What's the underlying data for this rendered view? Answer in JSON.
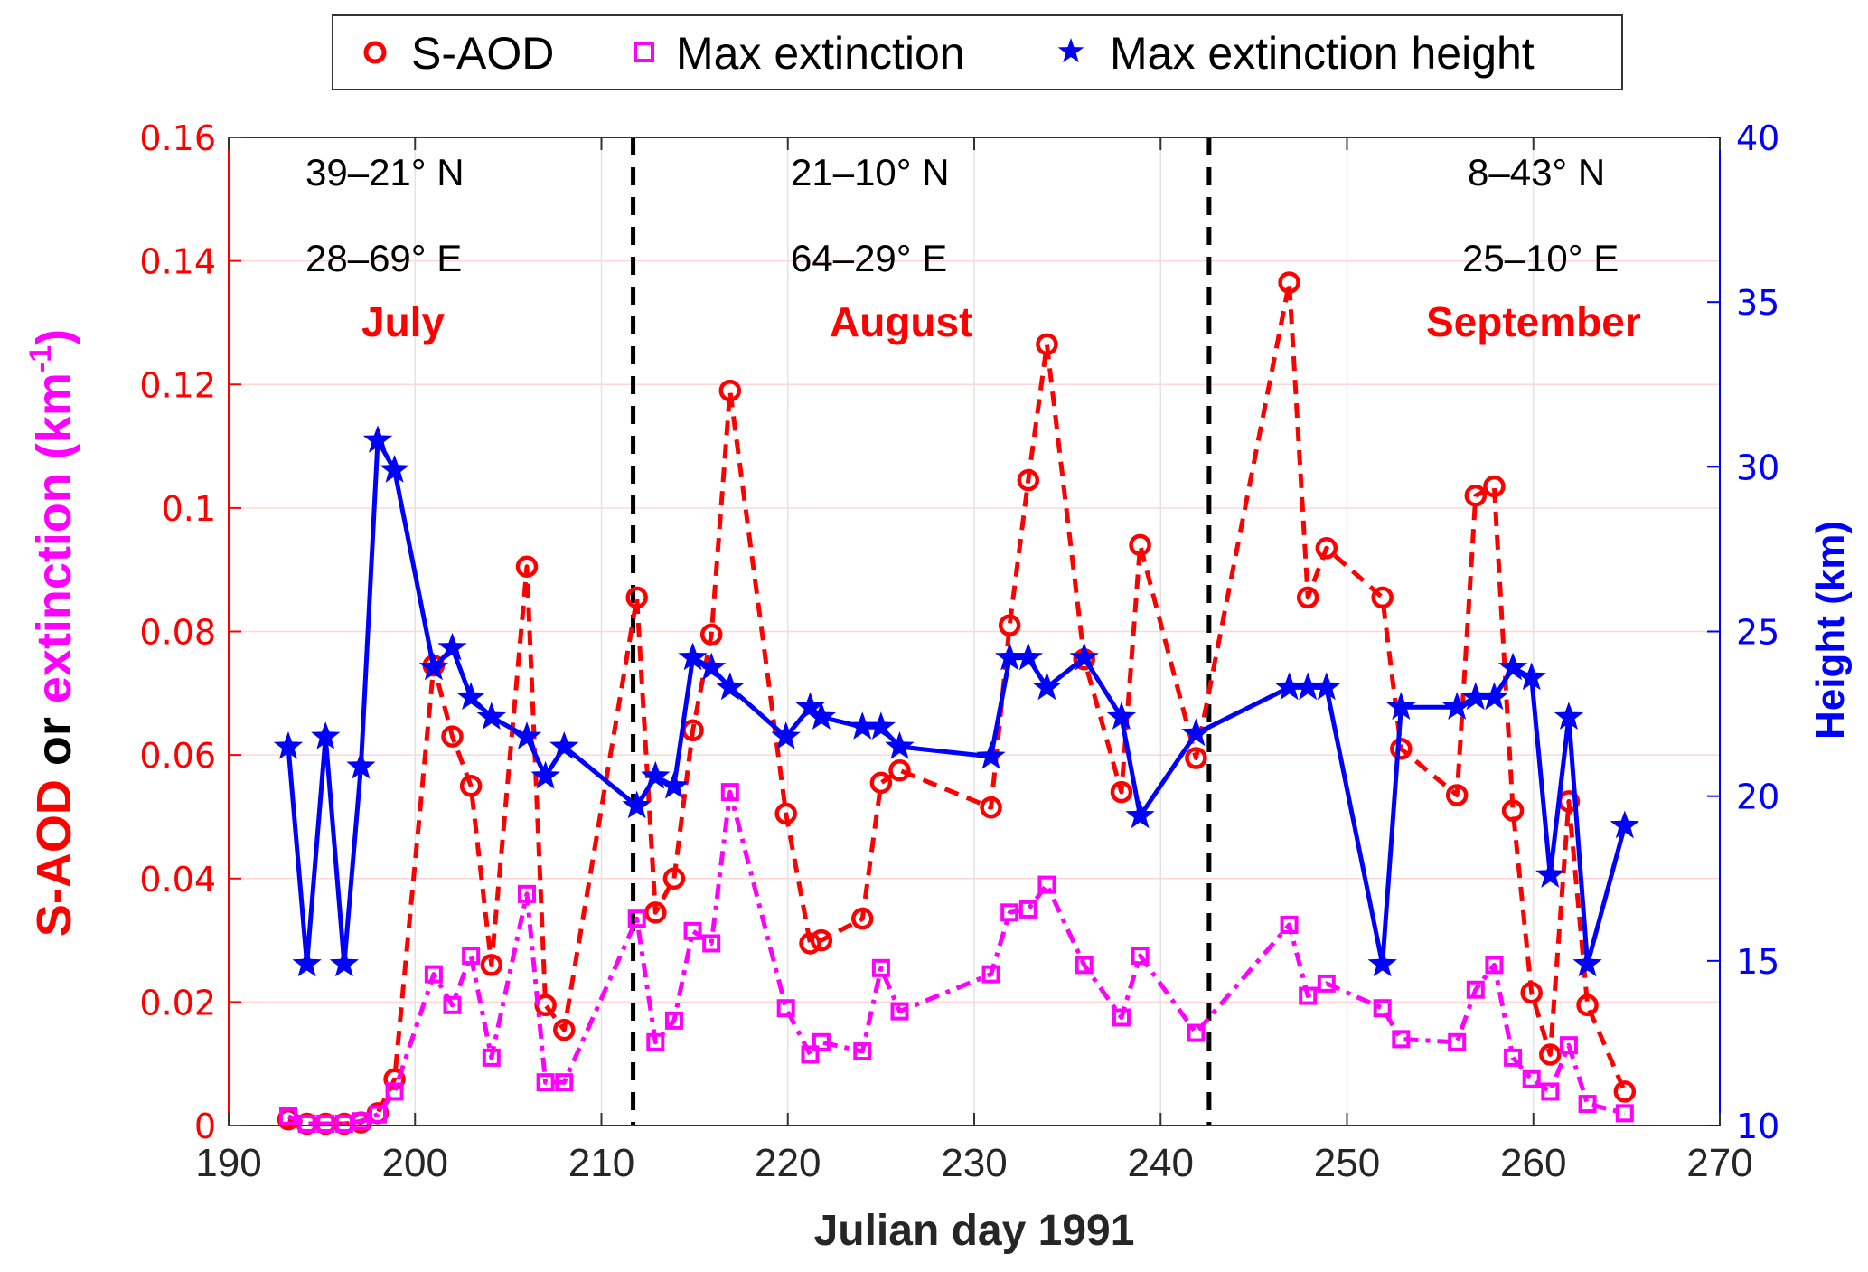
{
  "chart_data": {
    "type": "line",
    "title": "",
    "xlabel": "Julian day 1991",
    "ylabel_left_parts": [
      {
        "text": "S-AOD",
        "color": "#ff0000"
      },
      {
        "text": " or ",
        "color": "#000000"
      },
      {
        "text": "extinction (km",
        "color": "#ff00ff"
      },
      {
        "text": "-1",
        "color": "#ff00ff",
        "superscript": true
      },
      {
        "text": ")",
        "color": "#ff00ff"
      }
    ],
    "ylabel_right": "Height (km)",
    "xlim": [
      190,
      270
    ],
    "ylim_left": [
      0,
      0.16
    ],
    "ylim_right": [
      10,
      40
    ],
    "x_ticks": [
      "190",
      "200",
      "210",
      "220",
      "230",
      "240",
      "250",
      "260",
      "270"
    ],
    "y_left_ticks": [
      "0",
      "0.02",
      "0.04",
      "0.06",
      "0.08",
      "0.1",
      "0.12",
      "0.14",
      "0.16"
    ],
    "y_right_ticks": [
      "10",
      "15",
      "20",
      "25",
      "30",
      "35",
      "40"
    ],
    "grid": true,
    "legend_position": "top-center-outside",
    "legend": [
      {
        "label": "S-AOD",
        "marker": "circle",
        "color": "#ff0000"
      },
      {
        "label": "Max extinction",
        "marker": "square",
        "color": "#ff00ff"
      },
      {
        "label": "Max extinction height",
        "marker": "star",
        "color": "#0000ff"
      }
    ],
    "separators": [
      211.7,
      242.6
    ],
    "annotations": [
      {
        "region": "July",
        "lat": "39–21° N",
        "lon": "28–69° E",
        "month": "July"
      },
      {
        "region": "August",
        "lat": "21–10° N",
        "lon": "64–29° E",
        "month": "August"
      },
      {
        "region": "September",
        "lat": "8–43° N",
        "lon": "25–10° E",
        "month": "September"
      }
    ],
    "series": [
      {
        "name": "S-AOD",
        "axis": "left",
        "color": "#ff0000",
        "style": "dashed",
        "marker": "circle",
        "x": [
          193.2,
          194.2,
          195.2,
          196.2,
          197.1,
          198.0,
          198.9,
          201.0,
          202.0,
          203.0,
          204.1,
          206.0,
          207.0,
          208.0,
          211.9,
          212.9,
          213.9,
          214.9,
          215.9,
          216.9,
          219.9,
          221.2,
          221.8,
          224.0,
          225.0,
          226.0,
          230.9,
          231.9,
          232.9,
          233.9,
          235.9,
          237.9,
          238.9,
          241.9,
          246.9,
          247.9,
          248.9,
          251.9,
          252.9,
          255.9,
          256.9,
          257.9,
          258.9,
          259.9,
          260.9,
          261.9,
          262.9,
          264.9
        ],
        "values": [
          0.001,
          0.0003,
          0.0003,
          0.0003,
          0.0005,
          0.002,
          0.0075,
          0.0745,
          0.063,
          0.055,
          0.026,
          0.0905,
          0.0195,
          0.0155,
          0.0855,
          0.0345,
          0.04,
          0.064,
          0.0795,
          0.119,
          0.0505,
          0.0295,
          0.03,
          0.0335,
          0.0555,
          0.0575,
          0.0515,
          0.081,
          0.1045,
          0.1265,
          0.0755,
          0.054,
          0.094,
          0.0595,
          0.1365,
          0.0855,
          0.0935,
          0.0855,
          0.061,
          0.0535,
          0.102,
          0.1035,
          0.051,
          0.0215,
          0.0115,
          0.0525,
          0.0195,
          0.0055
        ]
      },
      {
        "name": "Max extinction",
        "axis": "left",
        "color": "#ff00ff",
        "style": "dashdot",
        "marker": "square",
        "x": [
          193.2,
          194.2,
          195.2,
          196.2,
          197.1,
          198.0,
          198.9,
          201.0,
          202.0,
          203.0,
          204.1,
          206.0,
          207.0,
          208.0,
          211.9,
          212.9,
          213.9,
          214.9,
          215.9,
          216.9,
          219.9,
          221.2,
          221.8,
          224.0,
          225.0,
          226.0,
          230.9,
          231.9,
          232.9,
          233.9,
          235.9,
          237.9,
          238.9,
          241.9,
          246.9,
          247.9,
          248.9,
          251.9,
          252.9,
          255.9,
          256.9,
          257.9,
          258.9,
          259.9,
          260.9,
          261.9,
          262.9,
          264.9
        ],
        "values": [
          0.0015,
          0.0003,
          0.0003,
          0.0003,
          0.0007,
          0.0018,
          0.0055,
          0.0245,
          0.0195,
          0.0275,
          0.011,
          0.0375,
          0.007,
          0.007,
          0.0335,
          0.0135,
          0.017,
          0.0315,
          0.0295,
          0.054,
          0.019,
          0.0115,
          0.0135,
          0.012,
          0.0255,
          0.0185,
          0.0245,
          0.0345,
          0.035,
          0.039,
          0.026,
          0.0175,
          0.0275,
          0.015,
          0.0325,
          0.021,
          0.023,
          0.019,
          0.014,
          0.0135,
          0.022,
          0.026,
          0.011,
          0.0075,
          0.0055,
          0.013,
          0.0035,
          0.002
        ]
      },
      {
        "name": "Max extinction height",
        "axis": "right",
        "color": "#0000ff",
        "style": "solid",
        "marker": "star",
        "x": [
          193.2,
          194.2,
          195.2,
          196.2,
          197.1,
          198.0,
          198.9,
          201.0,
          202.0,
          203.0,
          204.1,
          206.0,
          207.0,
          208.0,
          211.9,
          212.9,
          213.9,
          214.9,
          215.9,
          216.9,
          219.9,
          221.2,
          221.8,
          224.0,
          225.0,
          226.0,
          230.9,
          231.9,
          232.9,
          233.9,
          235.9,
          237.9,
          238.9,
          241.9,
          246.9,
          247.9,
          248.9,
          251.9,
          252.9,
          255.9,
          256.9,
          257.9,
          258.9,
          259.9,
          260.9,
          261.9,
          262.9,
          264.9
        ],
        "values": [
          21.5,
          14.9,
          21.8,
          14.9,
          20.9,
          30.8,
          29.9,
          23.9,
          24.5,
          23.0,
          22.4,
          21.8,
          20.6,
          21.5,
          19.7,
          20.6,
          20.3,
          24.2,
          23.9,
          23.3,
          21.8,
          22.7,
          22.4,
          22.1,
          22.1,
          21.5,
          21.2,
          24.2,
          24.2,
          23.3,
          24.2,
          22.4,
          19.4,
          21.9,
          23.3,
          23.3,
          23.3,
          14.9,
          22.7,
          22.7,
          23.0,
          23.0,
          23.9,
          23.6,
          17.6,
          22.4,
          14.9,
          19.1
        ]
      }
    ]
  }
}
